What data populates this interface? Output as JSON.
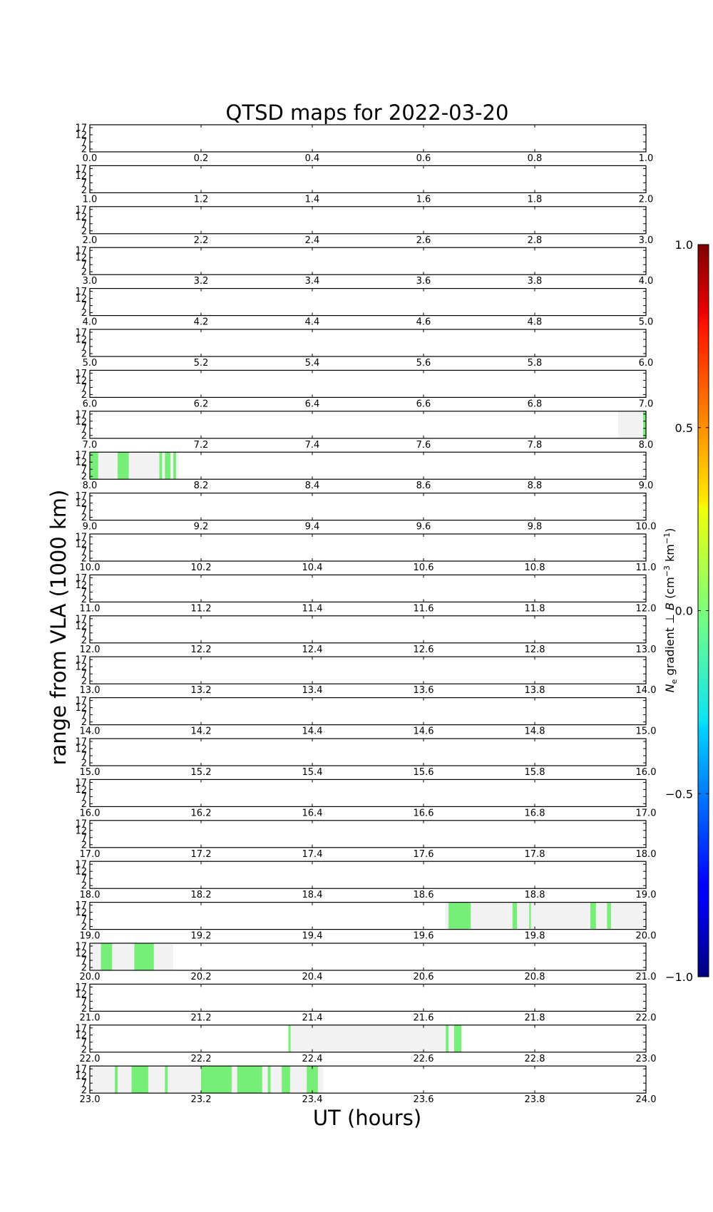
{
  "chart_data": {
    "type": "heatmap",
    "title": "QTSD maps for 2022-03-20",
    "xlabel": "UT (hours)",
    "ylabel": "range from VLA (1000 km)",
    "yticks": [
      "17",
      "12",
      "7",
      "2"
    ],
    "ylim": [
      0,
      19
    ],
    "panel_hours": [
      0,
      1,
      2,
      3,
      4,
      5,
      6,
      7,
      8,
      9,
      10,
      11,
      12,
      13,
      14,
      15,
      16,
      17,
      18,
      19,
      20,
      21,
      22,
      23
    ],
    "panel_tick_step": 0.2,
    "colorbar": {
      "label": "N_e gradient ⊥ B (cm^-3 km^-1)",
      "range": [
        -1.0,
        1.0
      ],
      "ticks": [
        "1.0",
        "0.5",
        "0.0",
        "−0.5",
        "−1.0"
      ],
      "colormap": "jet"
    },
    "coverage_color": "#f2f2f2",
    "signal_color": "#77ee77",
    "coverage": [
      {
        "start": 7.95,
        "end": 8.0
      },
      {
        "start": 8.0,
        "end": 8.16
      },
      {
        "start": 19.64,
        "end": 20.0
      },
      {
        "start": 20.0,
        "end": 20.15
      },
      {
        "start": 22.36,
        "end": 22.67
      },
      {
        "start": 23.0,
        "end": 23.42
      }
    ],
    "signals": [
      {
        "start": 7.995,
        "end": 8.0
      },
      {
        "start": 8.0,
        "end": 8.015
      },
      {
        "start": 8.05,
        "end": 8.07
      },
      {
        "start": 8.125,
        "end": 8.13
      },
      {
        "start": 8.135,
        "end": 8.145
      },
      {
        "start": 8.15,
        "end": 8.155
      },
      {
        "start": 19.645,
        "end": 19.685
      },
      {
        "start": 19.76,
        "end": 19.768
      },
      {
        "start": 19.79,
        "end": 19.793
      },
      {
        "start": 19.9,
        "end": 19.91
      },
      {
        "start": 19.93,
        "end": 19.937
      },
      {
        "start": 20.02,
        "end": 20.04
      },
      {
        "start": 20.08,
        "end": 20.115
      },
      {
        "start": 22.357,
        "end": 22.361
      },
      {
        "start": 22.64,
        "end": 22.645
      },
      {
        "start": 22.655,
        "end": 22.668
      },
      {
        "start": 23.045,
        "end": 23.05
      },
      {
        "start": 23.075,
        "end": 23.105
      },
      {
        "start": 23.135,
        "end": 23.14
      },
      {
        "start": 23.2,
        "end": 23.255
      },
      {
        "start": 23.265,
        "end": 23.31
      },
      {
        "start": 23.32,
        "end": 23.325
      },
      {
        "start": 23.345,
        "end": 23.36
      },
      {
        "start": 23.39,
        "end": 23.41
      }
    ]
  }
}
